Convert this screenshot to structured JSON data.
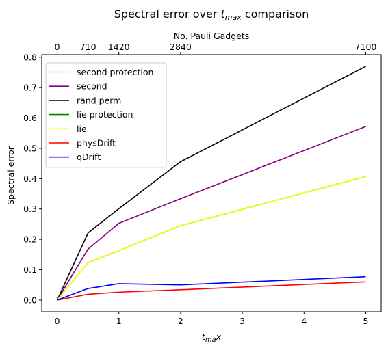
{
  "chart_data": {
    "type": "line",
    "title_main": "Spectral error over ",
    "title_var": "t",
    "title_sub": "max",
    "title_tail": " comparison",
    "top_xlabel": "No. Pauli Gadgets",
    "xlabel_var": "t",
    "xlabel_sub": "ma",
    "xlabel_tail": "x",
    "ylabel": "Spectral error",
    "xlim": [
      -0.25,
      5.25
    ],
    "ylim": [
      -0.0385,
      0.8085
    ],
    "x_ticks": [
      "0",
      "1",
      "2",
      "3",
      "4",
      "5"
    ],
    "y_ticks": [
      "0.0",
      "0.1",
      "0.2",
      "0.3",
      "0.4",
      "0.5",
      "0.6",
      "0.7",
      "0.8"
    ],
    "top_ticks": [
      {
        "x": 0,
        "label": "0"
      },
      {
        "x": 0.5,
        "label": "710"
      },
      {
        "x": 1,
        "label": "1420"
      },
      {
        "x": 2,
        "label": "2840"
      },
      {
        "x": 5,
        "label": "7100"
      }
    ],
    "x": [
      0,
      0.5,
      1,
      2,
      5
    ],
    "legend_position": "upper-left",
    "grid": false,
    "series": [
      {
        "name": "second protection",
        "color": "#ffc0cb",
        "values": [
          0,
          0.168,
          0.253,
          0.334,
          0.572
        ]
      },
      {
        "name": "second",
        "color": "#800080",
        "values": [
          0,
          0.168,
          0.253,
          0.334,
          0.572
        ]
      },
      {
        "name": "rand perm",
        "color": "#000000",
        "values": [
          0,
          0.221,
          0.301,
          0.456,
          0.77
        ]
      },
      {
        "name": "lie protection",
        "color": "#008000",
        "values": [
          0,
          0.123,
          0.163,
          0.245,
          0.407
        ]
      },
      {
        "name": "lie",
        "color": "#ffff00",
        "values": [
          0,
          0.123,
          0.163,
          0.245,
          0.407
        ]
      },
      {
        "name": "physDrift",
        "color": "#ff0000",
        "values": [
          0,
          0.019,
          0.026,
          0.034,
          0.06
        ]
      },
      {
        "name": "qDrift",
        "color": "#0000ff",
        "values": [
          0,
          0.038,
          0.054,
          0.05,
          0.077
        ]
      }
    ]
  }
}
